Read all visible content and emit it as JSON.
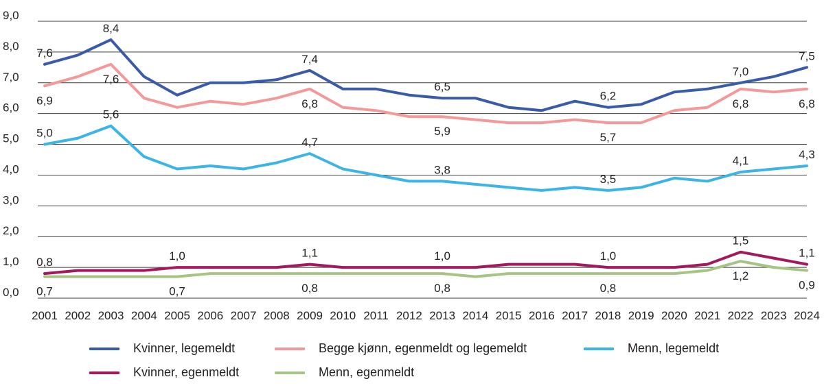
{
  "chart_data": {
    "type": "line",
    "title": "",
    "xlabel": "",
    "ylabel": "",
    "ylim": [
      0,
      9
    ],
    "yticks": [
      "0,0",
      "1,0",
      "2,0",
      "3,0",
      "4,0",
      "5,0",
      "6,0",
      "7,0",
      "8,0",
      "9,0"
    ],
    "categories": [
      "2001",
      "2002",
      "2003",
      "2004",
      "2005",
      "2006",
      "2007",
      "2008",
      "2009",
      "2010",
      "2011",
      "2012",
      "2013",
      "2014",
      "2015",
      "2016",
      "2017",
      "2018",
      "2019",
      "2020",
      "2021",
      "2022",
      "2023",
      "2024"
    ],
    "series": [
      {
        "key": "kvinner-legemeldt",
        "name": "Kvinner, legemeldt",
        "color": "#3a5ba8",
        "values": [
          7.6,
          7.9,
          8.4,
          7.2,
          6.6,
          7.0,
          7.0,
          7.1,
          7.4,
          6.8,
          6.8,
          6.6,
          6.5,
          6.5,
          6.2,
          6.1,
          6.4,
          6.2,
          6.3,
          6.7,
          6.8,
          7.0,
          7.2,
          7.5
        ],
        "labels": [
          {
            "index": 0,
            "text": "7,6",
            "pos": "above"
          },
          {
            "index": 2,
            "text": "8,4",
            "pos": "above"
          },
          {
            "index": 8,
            "text": "7,4",
            "pos": "above"
          },
          {
            "index": 12,
            "text": "6,5",
            "pos": "above"
          },
          {
            "index": 17,
            "text": "6,2",
            "pos": "above"
          },
          {
            "index": 21,
            "text": "7,0",
            "pos": "above"
          },
          {
            "index": 23,
            "text": "7,5",
            "pos": "above"
          }
        ]
      },
      {
        "key": "begge-kjonn",
        "name": "Begge kjønn, egenmeldt og legemeldt",
        "color": "#f4999a",
        "values": [
          6.9,
          7.2,
          7.6,
          6.5,
          6.2,
          6.4,
          6.3,
          6.5,
          6.8,
          6.2,
          6.1,
          5.9,
          5.9,
          5.8,
          5.7,
          5.7,
          5.8,
          5.7,
          5.7,
          6.1,
          6.2,
          6.8,
          6.7,
          6.8
        ],
        "labels": [
          {
            "index": 0,
            "text": "6,9",
            "pos": "below"
          },
          {
            "index": 2,
            "text": "7,6",
            "pos": "below"
          },
          {
            "index": 8,
            "text": "6,8",
            "pos": "below"
          },
          {
            "index": 12,
            "text": "5,9",
            "pos": "below"
          },
          {
            "index": 17,
            "text": "5,7",
            "pos": "below"
          },
          {
            "index": 21,
            "text": "6,8",
            "pos": "below"
          },
          {
            "index": 23,
            "text": "6,8",
            "pos": "below"
          }
        ]
      },
      {
        "key": "menn-legemeldt",
        "name": "Menn, legemeldt",
        "color": "#3cb4e5",
        "values": [
          5.0,
          5.2,
          5.6,
          4.6,
          4.2,
          4.3,
          4.2,
          4.4,
          4.7,
          4.2,
          4.0,
          3.8,
          3.8,
          3.7,
          3.6,
          3.5,
          3.6,
          3.5,
          3.6,
          3.9,
          3.8,
          4.1,
          4.2,
          4.3
        ],
        "labels": [
          {
            "index": 0,
            "text": "5,0",
            "pos": "above"
          },
          {
            "index": 2,
            "text": "5,6",
            "pos": "above"
          },
          {
            "index": 8,
            "text": "4,7",
            "pos": "above"
          },
          {
            "index": 12,
            "text": "3,8",
            "pos": "above"
          },
          {
            "index": 17,
            "text": "3,5",
            "pos": "above"
          },
          {
            "index": 21,
            "text": "4,1",
            "pos": "above"
          },
          {
            "index": 23,
            "text": "4,3",
            "pos": "above"
          }
        ]
      },
      {
        "key": "kvinner-egenmeldt",
        "name": "Kvinner, egenmeldt",
        "color": "#a3195b",
        "values": [
          0.8,
          0.9,
          0.9,
          0.9,
          1.0,
          1.0,
          1.0,
          1.0,
          1.1,
          1.0,
          1.0,
          1.0,
          1.0,
          1.0,
          1.1,
          1.1,
          1.1,
          1.0,
          1.0,
          1.0,
          1.1,
          1.5,
          1.3,
          1.1
        ],
        "labels": [
          {
            "index": 0,
            "text": "0,8",
            "pos": "above"
          },
          {
            "index": 4,
            "text": "1,0",
            "pos": "above"
          },
          {
            "index": 8,
            "text": "1,1",
            "pos": "above"
          },
          {
            "index": 12,
            "text": "1,0",
            "pos": "above"
          },
          {
            "index": 17,
            "text": "1,0",
            "pos": "above"
          },
          {
            "index": 21,
            "text": "1,5",
            "pos": "above"
          },
          {
            "index": 23,
            "text": "1,1",
            "pos": "above"
          }
        ]
      },
      {
        "key": "menn-egenmeldt",
        "name": "Menn, egenmeldt",
        "color": "#a6c484",
        "values": [
          0.7,
          0.7,
          0.7,
          0.7,
          0.7,
          0.8,
          0.8,
          0.8,
          0.8,
          0.8,
          0.8,
          0.8,
          0.8,
          0.7,
          0.8,
          0.8,
          0.8,
          0.8,
          0.8,
          0.8,
          0.9,
          1.2,
          1.0,
          0.9
        ],
        "labels": [
          {
            "index": 0,
            "text": "0,7",
            "pos": "below"
          },
          {
            "index": 4,
            "text": "0,7",
            "pos": "below"
          },
          {
            "index": 8,
            "text": "0,8",
            "pos": "below"
          },
          {
            "index": 12,
            "text": "0,8",
            "pos": "below"
          },
          {
            "index": 17,
            "text": "0,8",
            "pos": "below"
          },
          {
            "index": 21,
            "text": "1,2",
            "pos": "below"
          },
          {
            "index": 23,
            "text": "0,9",
            "pos": "below"
          }
        ]
      }
    ],
    "legend": {
      "placement": "bottom",
      "entries": [
        "Kvinner, legemeldt",
        "Begge kjønn, egenmeldt og legemeldt",
        "Menn, legemeldt",
        "Kvinner, egenmeldt",
        "Menn, egenmeldt"
      ]
    }
  }
}
